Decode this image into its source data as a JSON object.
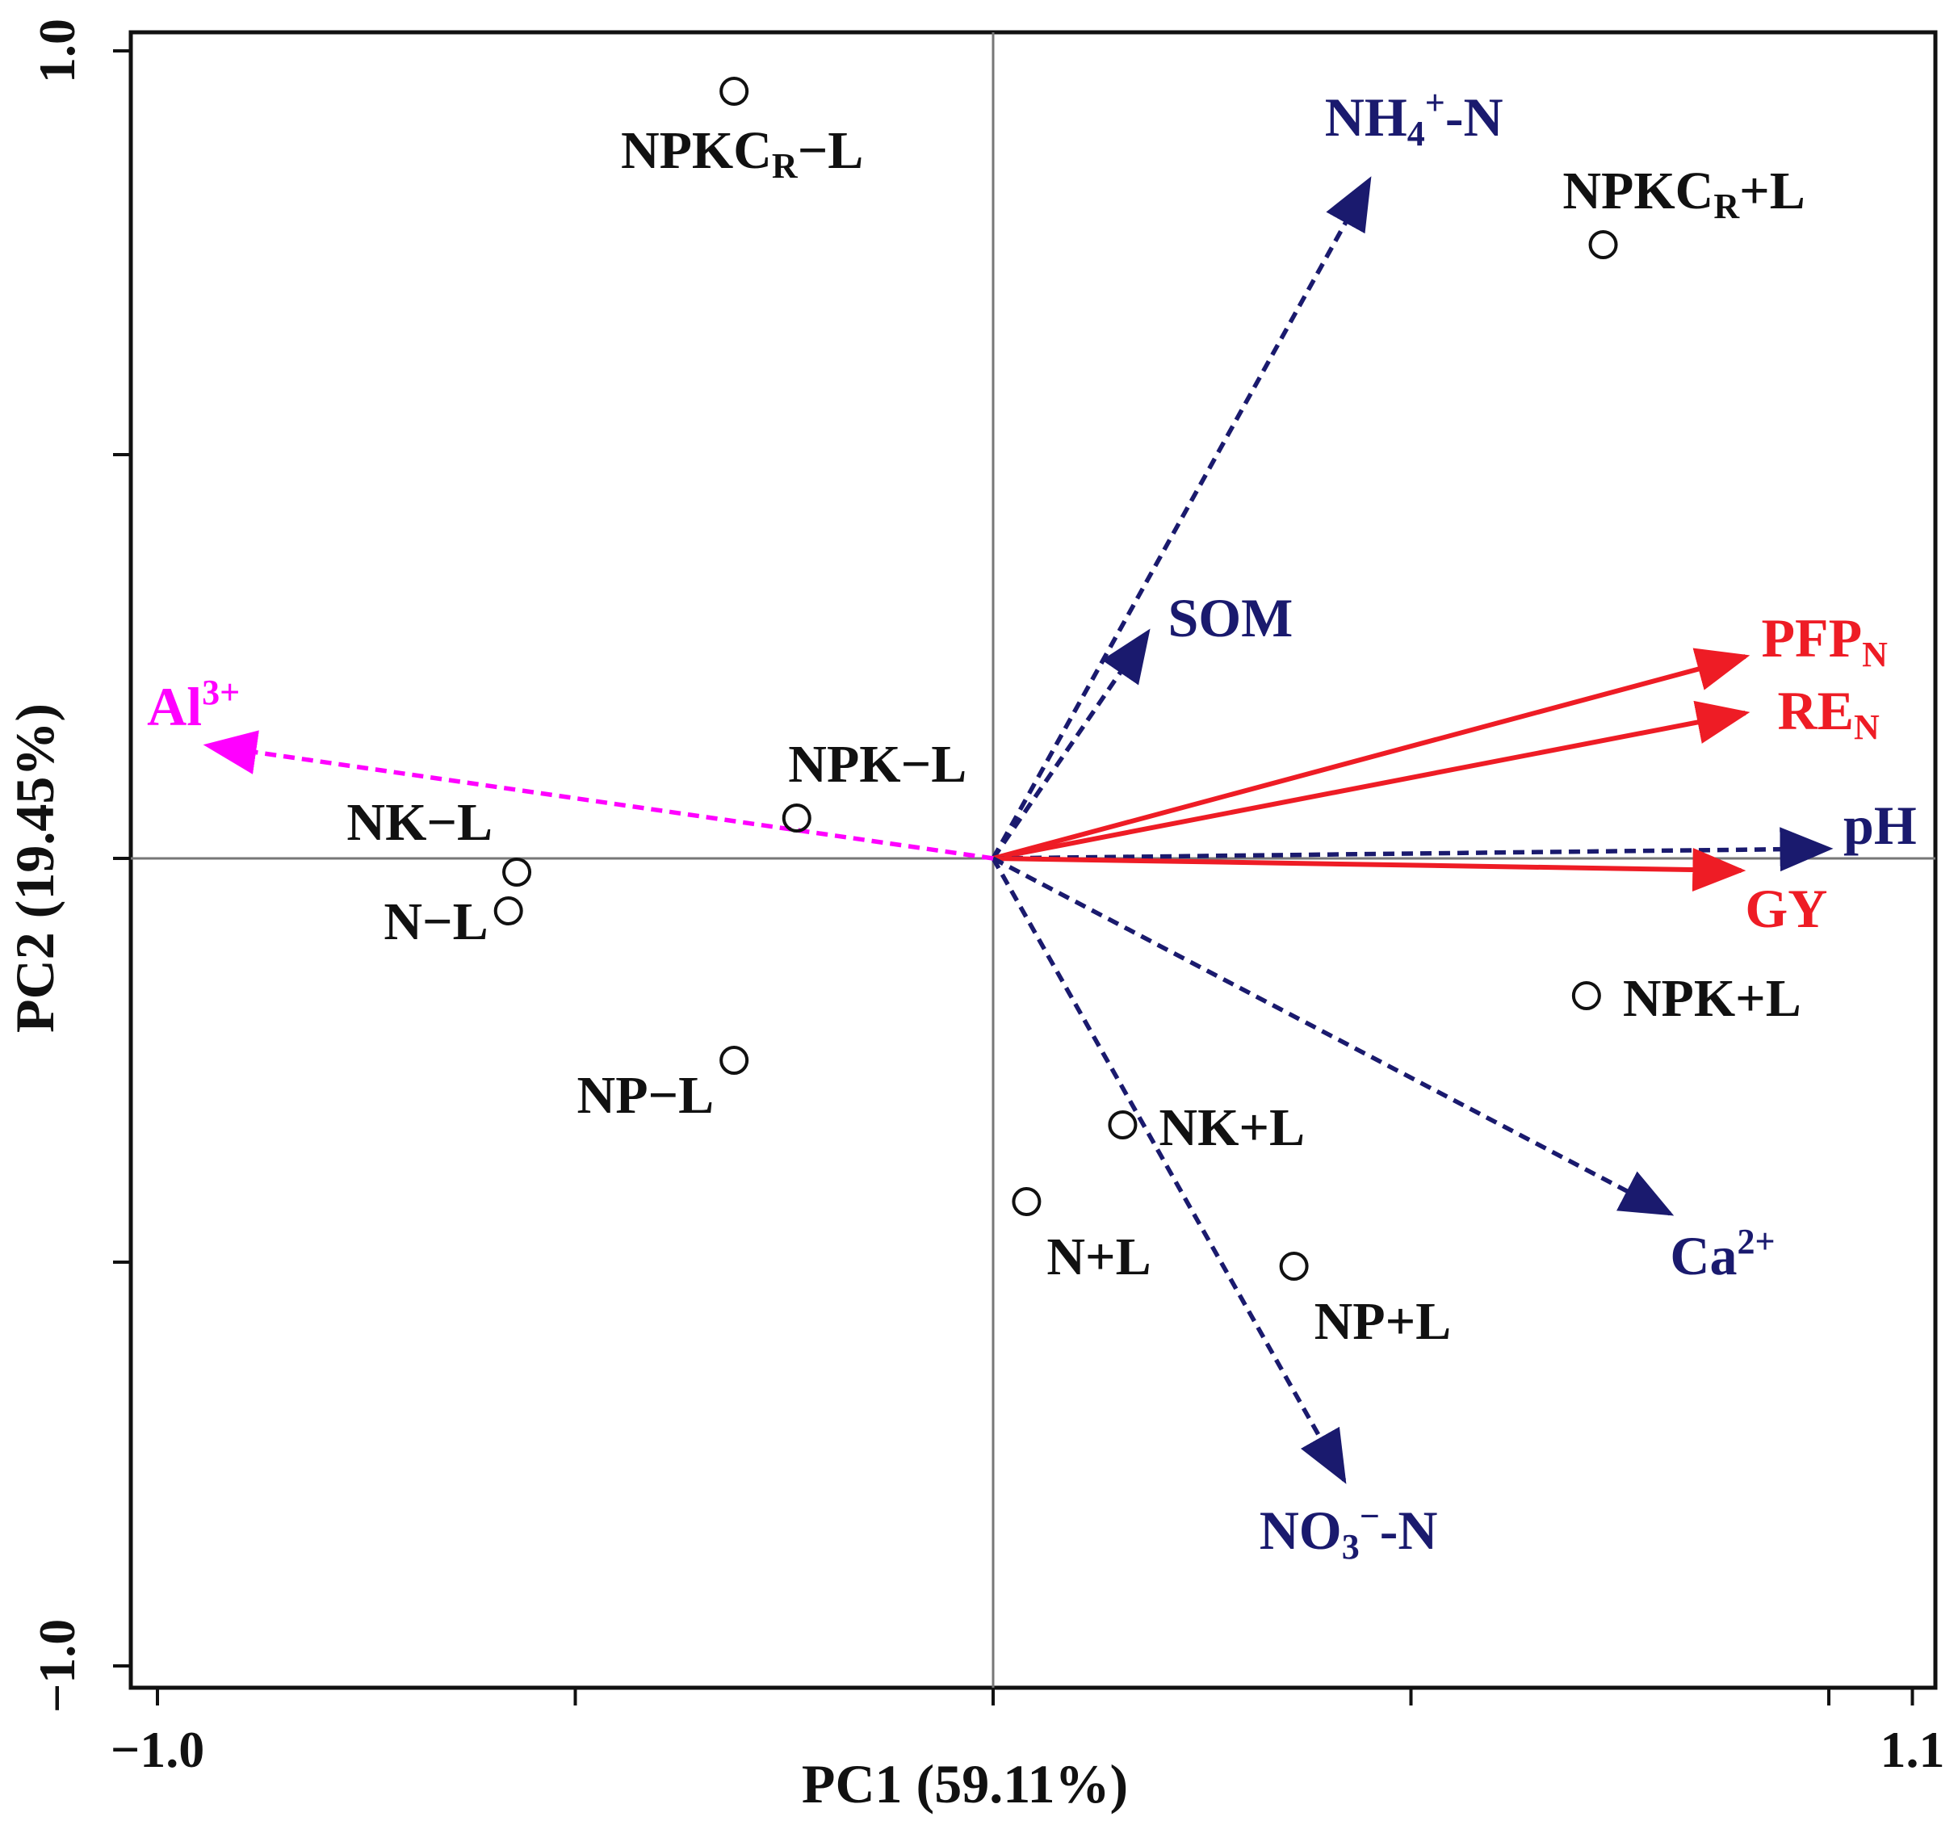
{
  "chart_data": {
    "type": "scatter",
    "subtype": "pca-biplot",
    "title": "",
    "xlabel": "PC1  (59.11%)",
    "ylabel": "PC2  (19.45%)",
    "xlim": [
      -1.0,
      1.1
    ],
    "ylim": [
      -1.0,
      1.0
    ],
    "x_tick_labels": [
      {
        "value": -1.0,
        "text": "−1.0"
      },
      {
        "value": 1.1,
        "text": "1.1"
      }
    ],
    "y_tick_labels": [
      {
        "value": 1.0,
        "text": "1.0"
      },
      {
        "value": -1.0,
        "text": "−1.0"
      }
    ],
    "x_ticks": [
      -1.0,
      -0.5,
      0.0,
      0.5,
      1.0,
      1.1
    ],
    "y_ticks": [
      1.0,
      0.5,
      0.0,
      -0.5,
      -1.0
    ],
    "grid": false,
    "reference_lines": {
      "x": 0,
      "y": 0
    },
    "points": [
      {
        "name": "NPKCR−L",
        "base": "NPKC",
        "sub": "R",
        "suffix": "−L",
        "x": -0.31,
        "y": 0.95,
        "label_pos": "below"
      },
      {
        "name": "NPKCR+L",
        "base": "NPKC",
        "sub": "R",
        "suffix": "+L",
        "x": 0.73,
        "y": 0.76,
        "label_pos": "above"
      },
      {
        "name": "NPK−L",
        "label": "NPK−L",
        "x": -0.235,
        "y": 0.05,
        "label_pos": "above"
      },
      {
        "name": "NK−L",
        "label": "NK−L",
        "x": -0.57,
        "y": -0.017,
        "label_pos": "above-left"
      },
      {
        "name": "N−L",
        "label": "N−L",
        "x": -0.58,
        "y": -0.065,
        "label_pos": "left"
      },
      {
        "name": "NP−L",
        "label": "NP−L",
        "x": -0.31,
        "y": -0.25,
        "label_pos": "below-left"
      },
      {
        "name": "NPK+L",
        "label": "NPK+L",
        "x": 0.71,
        "y": -0.17,
        "label_pos": "right"
      },
      {
        "name": "NK+L",
        "label": "NK+L",
        "x": 0.155,
        "y": -0.33,
        "label_pos": "right"
      },
      {
        "name": "N+L",
        "label": "N+L",
        "x": 0.04,
        "y": -0.425,
        "label_pos": "below-right"
      },
      {
        "name": "NP+L",
        "label": "NP+L",
        "x": 0.36,
        "y": -0.505,
        "label_pos": "below-right"
      }
    ],
    "vectors": [
      {
        "name": "NH4+-N",
        "base": "NH",
        "sub": "4",
        "sup": "+",
        "suffix": "-N",
        "x": 0.45,
        "y": 0.84,
        "color": "#1a1a6e",
        "style": "dashed"
      },
      {
        "name": "SOM",
        "label": "SOM",
        "x": 0.185,
        "y": 0.28,
        "color": "#1a1a6e",
        "style": "dashed"
      },
      {
        "name": "PFPN",
        "base": "PFP",
        "sub": "N",
        "x": 0.9,
        "y": 0.25,
        "color": "#ee1c25",
        "style": "solid"
      },
      {
        "name": "REN",
        "base": "RE",
        "sub": "N",
        "x": 0.9,
        "y": 0.18,
        "color": "#ee1c25",
        "style": "solid"
      },
      {
        "name": "pH",
        "label": "pH",
        "x": 1.0,
        "y": 0.012,
        "color": "#1a1a6e",
        "style": "dashed"
      },
      {
        "name": "GY",
        "label": "GY",
        "x": 0.895,
        "y": -0.015,
        "color": "#ee1c25",
        "style": "solid"
      },
      {
        "name": "Ca2+",
        "base": "Ca",
        "sup": "2+",
        "x": 0.81,
        "y": -0.44,
        "color": "#1a1a6e",
        "style": "dashed"
      },
      {
        "name": "NO3--N",
        "base": "NO",
        "sub": "3",
        "sup": "−",
        "suffix": "-N",
        "x": 0.42,
        "y": -0.77,
        "color": "#1a1a6e",
        "style": "dashed"
      },
      {
        "name": "Al3+",
        "base": "Al",
        "sup": "3+",
        "x": -0.94,
        "y": 0.14,
        "color": "#ff00ff",
        "style": "dashed"
      }
    ]
  }
}
